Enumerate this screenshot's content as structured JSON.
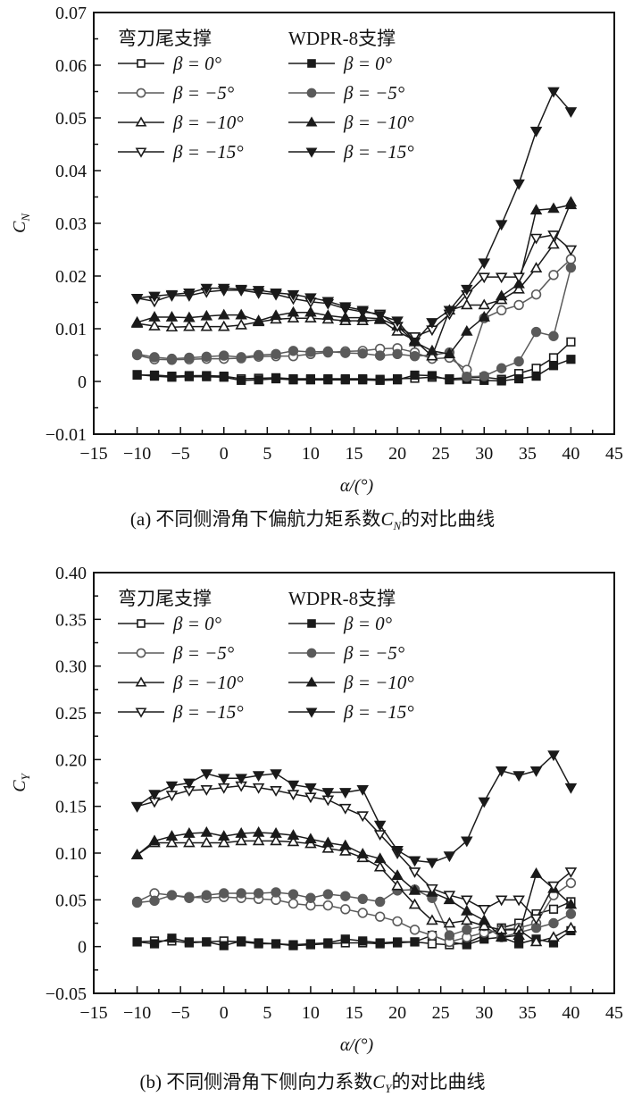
{
  "colors": {
    "dark": "#1a1a1a",
    "gray": "#5a5a5a",
    "axis": "#111111"
  },
  "chart_data": [
    {
      "type": "line",
      "panel": "a",
      "caption_prefix": "(a) 不同侧滑角下偏航力矩系数",
      "caption_sym": "C",
      "caption_sub": "N",
      "caption_suffix": "的对比曲线",
      "ylabel_sym": "C",
      "ylabel_sub": "N",
      "xlabel": "α/(°)",
      "xlim": [
        -15,
        45
      ],
      "ylim": [
        -0.01,
        0.07
      ],
      "xticks": [
        "−15",
        "−10",
        "−5",
        "0",
        "5",
        "10",
        "15",
        "20",
        "25",
        "30",
        "35",
        "40",
        "45"
      ],
      "xtick_values": [
        -15,
        -10,
        -5,
        0,
        5,
        10,
        15,
        20,
        25,
        30,
        35,
        40,
        45
      ],
      "yticks": [
        "−0.01",
        "0",
        "0.01",
        "0.02",
        "0.03",
        "0.04",
        "0.05",
        "0.06",
        "0.07"
      ],
      "ytick_values": [
        -0.01,
        0,
        0.01,
        0.02,
        0.03,
        0.04,
        0.05,
        0.06,
        0.07
      ],
      "legend": {
        "group1_title": "弯刀尾支撑",
        "group2_title": "WDPR-8支撑",
        "labels": [
          "β = 0°",
          "β = −5°",
          "β = −10°",
          "β = −15°"
        ],
        "placement": "top-left"
      },
      "x": [
        -10,
        -8,
        -6,
        -4,
        -2,
        0,
        2,
        4,
        6,
        8,
        10,
        12,
        14,
        16,
        18,
        20,
        22,
        24,
        26,
        28,
        30,
        32,
        34,
        36,
        38,
        40
      ],
      "series": [
        {
          "name": "弯刀尾支撑 β=0°",
          "marker": "square",
          "filled": false,
          "color": "dark",
          "values": [
            0.0012,
            0.0012,
            0.001,
            0.0011,
            0.0011,
            0.001,
            0.0005,
            0.0006,
            0.0007,
            0.0005,
            0.0005,
            0.0005,
            0.0005,
            0.0005,
            0.0004,
            0.0005,
            0.0006,
            0.0008,
            0.0005,
            0.0007,
            0.0008,
            0.0004,
            0.0015,
            0.0025,
            0.0045,
            0.0075
          ]
        },
        {
          "name": "WDPR-8支撑 β=0°",
          "marker": "square",
          "filled": true,
          "color": "dark",
          "values": [
            0.0013,
            0.001,
            0.0008,
            0.0009,
            0.0009,
            0.0008,
            0.0002,
            0.0003,
            0.0005,
            0.0003,
            0.0003,
            0.0003,
            0.0003,
            0.0003,
            0.0002,
            0.0003,
            0.0012,
            0.0011,
            0.0003,
            0.0004,
            0.0002,
            0.0001,
            0.0005,
            0.001,
            0.003,
            0.0042
          ]
        },
        {
          "name": "弯刀尾支撑 β=−5°",
          "marker": "circle",
          "filled": false,
          "color": "gray",
          "values": [
            0.005,
            0.0042,
            0.0041,
            0.0042,
            0.0043,
            0.0043,
            0.0044,
            0.0047,
            0.0048,
            0.0048,
            0.0052,
            0.0055,
            0.0057,
            0.0058,
            0.0062,
            0.0063,
            0.0055,
            0.0043,
            0.0045,
            0.0022,
            0.012,
            0.0135,
            0.0145,
            0.0165,
            0.0202,
            0.0232
          ]
        },
        {
          "name": "WDPR-8支撑 β=−5°",
          "marker": "circle",
          "filled": true,
          "color": "gray",
          "values": [
            0.0052,
            0.0046,
            0.0043,
            0.0045,
            0.0047,
            0.0049,
            0.0046,
            0.005,
            0.0052,
            0.0058,
            0.0056,
            0.0057,
            0.0054,
            0.0053,
            0.0049,
            0.0052,
            0.0048,
            0.005,
            0.0055,
            0.0009,
            0.001,
            0.0025,
            0.0038,
            0.0094,
            0.0086,
            0.0216
          ]
        },
        {
          "name": "弯刀尾支撑 β=−10°",
          "marker": "triangle-up",
          "filled": false,
          "color": "dark",
          "values": [
            0.011,
            0.0105,
            0.0103,
            0.0104,
            0.0104,
            0.0104,
            0.0107,
            0.0113,
            0.0118,
            0.012,
            0.012,
            0.0118,
            0.0115,
            0.0115,
            0.0117,
            0.0095,
            0.0078,
            0.0048,
            0.0135,
            0.0145,
            0.0145,
            0.0155,
            0.0175,
            0.0215,
            0.026,
            0.034
          ]
        },
        {
          "name": "WDPR-8支撑 β=−10°",
          "marker": "triangle-up",
          "filled": true,
          "color": "dark",
          "values": [
            0.0112,
            0.0122,
            0.0122,
            0.0121,
            0.0124,
            0.0126,
            0.0126,
            0.0115,
            0.0125,
            0.0131,
            0.0131,
            0.0125,
            0.0121,
            0.0121,
            0.0119,
            0.0105,
            0.0075,
            0.0058,
            0.0052,
            0.0095,
            0.0122,
            0.0162,
            0.0185,
            0.0325,
            0.0328,
            0.0335
          ]
        },
        {
          "name": "弯刀尾支撑 β=−15°",
          "marker": "triangle-down",
          "filled": false,
          "color": "dark",
          "values": [
            0.0158,
            0.0152,
            0.0163,
            0.0163,
            0.017,
            0.0173,
            0.0173,
            0.0168,
            0.0165,
            0.0157,
            0.0151,
            0.0148,
            0.0138,
            0.0132,
            0.0128,
            0.0105,
            0.0085,
            0.0098,
            0.0128,
            0.0165,
            0.0198,
            0.0198,
            0.0198,
            0.0272,
            0.0278,
            0.025
          ]
        },
        {
          "name": "WDPR-8支撑 β=−15°",
          "marker": "triangle-down",
          "filled": true,
          "color": "dark",
          "values": [
            0.0158,
            0.0162,
            0.0165,
            0.0168,
            0.0177,
            0.0177,
            0.0175,
            0.0173,
            0.0168,
            0.0165,
            0.0159,
            0.0152,
            0.0142,
            0.0135,
            0.0125,
            0.0115,
            0.0075,
            0.0112,
            0.0135,
            0.0175,
            0.0225,
            0.0298,
            0.0375,
            0.0475,
            0.055,
            0.0512
          ]
        }
      ]
    },
    {
      "type": "line",
      "panel": "b",
      "caption_prefix": "(b) 不同侧滑角下侧向力系数",
      "caption_sym": "C",
      "caption_sub": "Y",
      "caption_suffix": "的对比曲线",
      "ylabel_sym": "C",
      "ylabel_sub": "Y",
      "xlabel": "α/(°)",
      "xlim": [
        -15,
        45
      ],
      "ylim": [
        -0.05,
        0.4
      ],
      "xticks": [
        "−15",
        "−10",
        "−5",
        "0",
        "5",
        "10",
        "15",
        "20",
        "25",
        "30",
        "35",
        "40",
        "45"
      ],
      "xtick_values": [
        -15,
        -10,
        -5,
        0,
        5,
        10,
        15,
        20,
        25,
        30,
        35,
        40,
        45
      ],
      "yticks": [
        "−0.05",
        "0",
        "0.05",
        "0.10",
        "0.15",
        "0.20",
        "0.25",
        "0.30",
        "0.35",
        "0.40"
      ],
      "ytick_values": [
        -0.05,
        0,
        0.05,
        0.1,
        0.15,
        0.2,
        0.25,
        0.3,
        0.35,
        0.4
      ],
      "legend": {
        "group1_title": "弯刀尾支撑",
        "group2_title": "WDPR-8支撑",
        "labels": [
          "β = 0°",
          "β = −5°",
          "β = −10°",
          "β = −15°"
        ],
        "placement": "top-left"
      },
      "x": [
        -10,
        -8,
        -6,
        -4,
        -2,
        0,
        2,
        4,
        6,
        8,
        10,
        12,
        14,
        16,
        18,
        20,
        22,
        24,
        26,
        28,
        30,
        32,
        34,
        36,
        38,
        40
      ],
      "series": [
        {
          "name": "弯刀尾支撑 β=0°",
          "marker": "square",
          "filled": false,
          "color": "dark",
          "values": [
            0.005,
            0.006,
            0.006,
            0.004,
            0.005,
            0.006,
            0.005,
            0.003,
            0.003,
            0.001,
            0.002,
            0.003,
            0.004,
            0.004,
            0.003,
            0.004,
            0.005,
            0.003,
            0.002,
            0.004,
            0.012,
            0.02,
            0.025,
            0.035,
            0.04,
            0.048
          ]
        },
        {
          "name": "WDPR-8支撑 β=0°",
          "marker": "square",
          "filled": true,
          "color": "dark",
          "values": [
            0.005,
            0.003,
            0.009,
            0.005,
            0.005,
            0.001,
            0.006,
            0.004,
            0.003,
            0.002,
            0.003,
            0.004,
            0.008,
            0.006,
            0.004,
            0.005,
            0.005,
            0.012,
            0.005,
            0.002,
            0.008,
            0.01,
            0.003,
            0.008,
            0.004,
            0.017
          ]
        },
        {
          "name": "弯刀尾支撑 β=−5°",
          "marker": "circle",
          "filled": false,
          "color": "gray",
          "values": [
            0.048,
            0.057,
            0.055,
            0.053,
            0.052,
            0.053,
            0.052,
            0.051,
            0.05,
            0.046,
            0.044,
            0.044,
            0.04,
            0.036,
            0.032,
            0.027,
            0.018,
            0.012,
            0.005,
            0.01,
            0.015,
            0.018,
            0.02,
            0.025,
            0.055,
            0.068
          ]
        },
        {
          "name": "WDPR-8支撑 β=−5°",
          "marker": "circle",
          "filled": true,
          "color": "gray",
          "values": [
            0.047,
            0.049,
            0.055,
            0.052,
            0.055,
            0.057,
            0.057,
            0.057,
            0.058,
            0.056,
            0.052,
            0.056,
            0.054,
            0.051,
            0.048,
            0.06,
            0.061,
            0.052,
            0.012,
            0.018,
            0.022,
            0.01,
            0.015,
            0.02,
            0.025,
            0.035
          ]
        },
        {
          "name": "弯刀尾支撑 β=−10°",
          "marker": "triangle-up",
          "filled": false,
          "color": "dark",
          "values": [
            0.098,
            0.111,
            0.111,
            0.111,
            0.111,
            0.111,
            0.113,
            0.113,
            0.113,
            0.112,
            0.11,
            0.105,
            0.102,
            0.095,
            0.085,
            0.065,
            0.045,
            0.028,
            0.025,
            0.028,
            0.022,
            0.018,
            0.018,
            0.005,
            0.01,
            0.02
          ]
        },
        {
          "name": "WDPR-8支撑 β=−10°",
          "marker": "triangle-up",
          "filled": true,
          "color": "dark",
          "values": [
            0.098,
            0.113,
            0.118,
            0.121,
            0.122,
            0.118,
            0.121,
            0.122,
            0.121,
            0.119,
            0.115,
            0.111,
            0.108,
            0.099,
            0.094,
            0.076,
            0.06,
            0.058,
            0.05,
            0.038,
            0.028,
            0.01,
            0.012,
            0.078,
            0.062,
            0.045
          ]
        },
        {
          "name": "弯刀尾支撑 β=−15°",
          "marker": "triangle-down",
          "filled": false,
          "color": "dark",
          "values": [
            0.15,
            0.155,
            0.162,
            0.167,
            0.168,
            0.17,
            0.172,
            0.17,
            0.167,
            0.163,
            0.16,
            0.157,
            0.148,
            0.14,
            0.12,
            0.1,
            0.08,
            0.062,
            0.055,
            0.05,
            0.04,
            0.05,
            0.05,
            0.03,
            0.065,
            0.08
          ]
        },
        {
          "name": "WDPR-8支撑 β=−15°",
          "marker": "triangle-down",
          "filled": true,
          "color": "dark",
          "values": [
            0.15,
            0.163,
            0.172,
            0.175,
            0.185,
            0.18,
            0.18,
            0.183,
            0.185,
            0.173,
            0.17,
            0.165,
            0.165,
            0.168,
            0.13,
            0.103,
            0.092,
            0.09,
            0.097,
            0.113,
            0.155,
            0.188,
            0.183,
            0.188,
            0.205,
            0.17
          ]
        }
      ]
    }
  ]
}
